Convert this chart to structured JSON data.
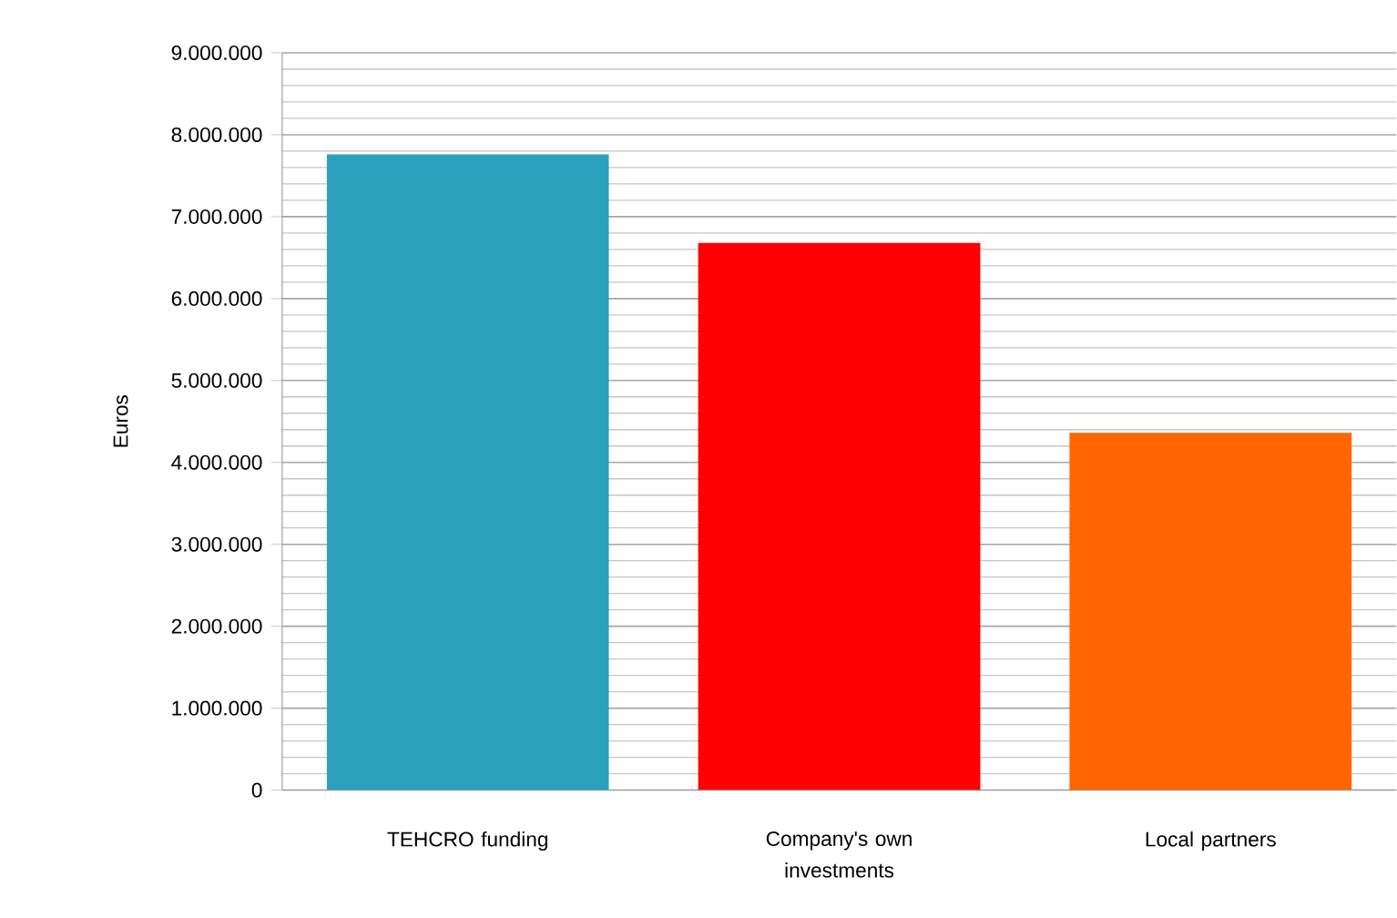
{
  "chart_data": {
    "type": "bar",
    "ylabel": "Euros",
    "categories": [
      "TEHCRO funding",
      "Company's own investments",
      "Local partners"
    ],
    "values": [
      7760000,
      6680000,
      4360000
    ],
    "colors": [
      "#2ca1be",
      "#ff0000",
      "#ff6600"
    ],
    "ylim": [
      0,
      9000000
    ],
    "yticks": [
      {
        "value": 0,
        "label": "0"
      },
      {
        "value": 1000000,
        "label": "1.000.000"
      },
      {
        "value": 2000000,
        "label": "2.000.000"
      },
      {
        "value": 3000000,
        "label": "3.000.000"
      },
      {
        "value": 4000000,
        "label": "4.000.000"
      },
      {
        "value": 5000000,
        "label": "5.000.000"
      },
      {
        "value": 6000000,
        "label": "6.000.000"
      },
      {
        "value": 7000000,
        "label": "7.000.000"
      },
      {
        "value": 8000000,
        "label": "8.000.000"
      },
      {
        "value": 9000000,
        "label": "9.000.000"
      }
    ],
    "grid": "y"
  }
}
